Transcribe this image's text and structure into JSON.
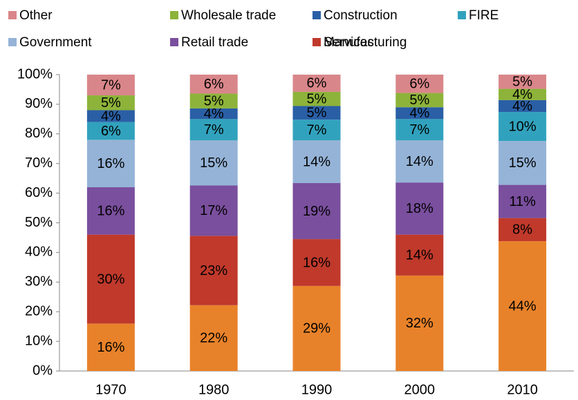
{
  "chart_data": {
    "type": "stacked_bar_100",
    "categories": [
      "1970",
      "1980",
      "1990",
      "2000",
      "2010"
    ],
    "series": [
      {
        "name": "Services",
        "color": "#e8822a",
        "values": [
          16,
          22.2,
          28.7,
          32.2,
          43.8
        ],
        "value_labels": [
          "16%",
          "22%",
          "29%",
          "32%",
          "44%"
        ]
      },
      {
        "name": "Manufacturing",
        "color": "#c0392b",
        "values": [
          30,
          23.4,
          15.8,
          13.8,
          7.8
        ],
        "value_labels": [
          "30%",
          "23%",
          "16%",
          "14%",
          "8%"
        ]
      },
      {
        "name": "Retail trade",
        "color": "#7a4f9e",
        "values": [
          16,
          17,
          18.9,
          17.6,
          11.2
        ],
        "value_labels": [
          "16%",
          "17%",
          "19%",
          "18%",
          "11%"
        ]
      },
      {
        "name": "Government",
        "color": "#95b3d7",
        "values": [
          16,
          15.2,
          14.4,
          14.2,
          14.8
        ],
        "value_labels": [
          "16%",
          "15%",
          "14%",
          "14%",
          "15%"
        ]
      },
      {
        "name": "FIRE",
        "color": "#31a2bd",
        "values": [
          6,
          7.2,
          7,
          7.2,
          9.8
        ],
        "value_labels": [
          "6%",
          "7%",
          "7%",
          "7%",
          "10%"
        ]
      },
      {
        "name": "Construction",
        "color": "#2a5fa6",
        "values": [
          4,
          3.6,
          4.6,
          4,
          4
        ],
        "value_labels": [
          "4%",
          "4%",
          "5%",
          "4%",
          "4%"
        ]
      },
      {
        "name": "Wholesale trade",
        "color": "#8db33a",
        "values": [
          5,
          5,
          4.8,
          4.8,
          3.8
        ],
        "value_labels": [
          "5%",
          "5%",
          "5%",
          "5%",
          "4%"
        ]
      },
      {
        "name": "Other",
        "color": "#d9868a",
        "values": [
          7,
          6.4,
          5.8,
          6.2,
          4.8
        ],
        "value_labels": [
          "7%",
          "6%",
          "6%",
          "6%",
          "5%"
        ]
      }
    ],
    "ylim": [
      0,
      100
    ],
    "yticks": [
      {
        "value": 0,
        "label": "0%"
      },
      {
        "value": 10,
        "label": "10%"
      },
      {
        "value": 20,
        "label": "20%"
      },
      {
        "value": 30,
        "label": "30%"
      },
      {
        "value": 40,
        "label": "40%"
      },
      {
        "value": 50,
        "label": "50%"
      },
      {
        "value": 60,
        "label": "60%"
      },
      {
        "value": 70,
        "label": "70%"
      },
      {
        "value": 80,
        "label": "80%"
      },
      {
        "value": 90,
        "label": "90%"
      },
      {
        "value": 100,
        "label": "100%"
      }
    ],
    "grid": false
  }
}
